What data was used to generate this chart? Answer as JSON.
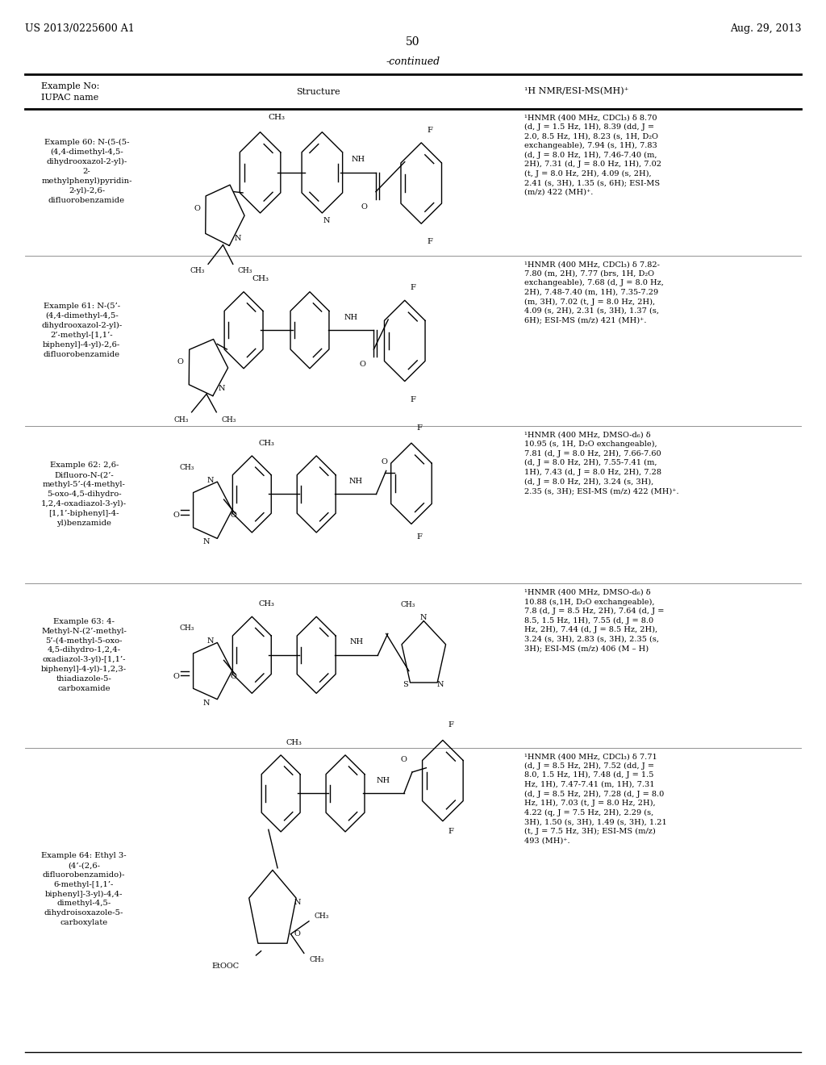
{
  "page_header_left": "US 2013/0225600 A1",
  "page_header_right": "Aug. 29, 2013",
  "page_number": "50",
  "continued_label": "-continued",
  "background_color": "#ffffff",
  "text_color": "#000000",
  "table_header_col1": "Example No:\nIUPAC name",
  "table_header_col2": "Structure",
  "table_header_col3": "¹H NMR/ESI-MS(MH)⁺",
  "examples": [
    {
      "id": "60",
      "name": "Example 60: N-(5-(5-\n(4,4-dimethyl-4,5-\ndihydrooxazol-2-yl)-\n2-\nmethylphenyl)pyridin-\n2-yl)-2,6-\ndifluorobenzamide",
      "nmr": "¹HNMR (400 MHz, CDCl₃) δ 8.70\n(d, J = 1.5 Hz, 1H), 8.39 (dd, J =\n2.0, 8.5 Hz, 1H), 8.23 (s, 1H, D₂O\nexchangeable), 7.94 (s, 1H), 7.83\n(d, J = 8.0 Hz, 1H), 7.46-7.40 (m,\n2H), 7.31 (d, J = 8.0 Hz, 1H), 7.02\n(t, J = 8.0 Hz, 2H), 4.09 (s, 2H),\n2.41 (s, 3H), 1.35 (s, 6H); ESI-MS\n(m/z) 422 (MH)⁺."
    },
    {
      "id": "61",
      "name": "Example 61: N-(5’-\n(4,4-dimethyl-4,5-\ndihydrooxazol-2-yl)-\n2’-methyl-[1,1’-\nbiphenyl]-4-yl)-2,6-\ndifluorobenzamide",
      "nmr": "¹HNMR (400 MHz, CDCl₃) δ 7.82-\n7.80 (m, 2H), 7.77 (brs, 1H, D₂O\nexchangeable), 7.68 (d, J = 8.0 Hz,\n2H), 7.48-7.40 (m, 1H), 7.35-7.29\n(m, 3H), 7.02 (t, J = 8.0 Hz, 2H),\n4.09 (s, 2H), 2.31 (s, 3H), 1.37 (s,\n6H); ESI-MS (m/z) 421 (MH)⁺."
    },
    {
      "id": "62",
      "name": "Example 62: 2,6-\nDifluoro-N-(2’-\nmethyl-5’-(4-methyl-\n5-oxo-4,5-dihydro-\n1,2,4-oxadiazol-3-yl)-\n[1,1’-biphenyl]-4-\nyl)benzamide",
      "nmr": "¹HNMR (400 MHz, DMSO-d₆) δ\n10.95 (s, 1H, D₂O exchangeable),\n7.81 (d, J = 8.0 Hz, 2H), 7.66-7.60\n(d, J = 8.0 Hz, 2H), 7.55-7.41 (m,\n1H), 7.43 (d, J = 8.0 Hz, 2H), 7.28\n(d, J = 8.0 Hz, 2H), 3.24 (s, 3H),\n2.35 (s, 3H); ESI-MS (m/z) 422 (MH)⁺."
    },
    {
      "id": "63",
      "name": "Example 63: 4-\nMethyl-N-(2’-methyl-\n5’-(4-methyl-5-oxo-\n4,5-dihydro-1,2,4-\noxadiazol-3-yl)-[1,1’-\nbiphenyl]-4-yl)-1,2,3-\nthiadiazole-5-\ncarboxamide",
      "nmr": "¹HNMR (400 MHz, DMSO-d₆) δ\n10.88 (s,1H, D₂O exchangeable),\n7.8 (d, J = 8.5 Hz, 2H), 7.64 (d, J =\n8.5, 1.5 Hz, 1H), 7.55 (d, J = 8.0\nHz, 2H), 7.44 (d, J = 8.5 Hz, 2H),\n3.24 (s, 3H), 2.83 (s, 3H), 2.35 (s,\n3H); ESI-MS (m/z) 406 (M – H)"
    },
    {
      "id": "64",
      "name": "Example 64: Ethyl 3-\n(4’-(2,6-\ndifluorobenzamido)-\n6-methyl-[1,1’-\nbiphenyl]-3-yl)-4,4-\ndimethyl-4,5-\ndihydroisoxazole-5-\ncarboxylate",
      "nmr": "¹HNMR (400 MHz, CDCl₃) δ 7.71\n(d, J = 8.5 Hz, 2H), 7.52 (dd, J =\n8.0, 1.5 Hz, 1H), 7.48 (d, J = 1.5\nHz, 1H), 7.47-7.41 (m, 1H), 7.31\n(d, J = 8.5 Hz, 2H), 7.28 (d, J = 8.0\nHz, 1H), 7.03 (t, J = 8.0 Hz, 2H),\n4.22 (q, J = 7.5 Hz, 2H), 2.29 (s,\n3H), 1.50 (s, 3H), 1.49 (s, 3H), 1.21\n(t, J = 7.5 Hz, 3H); ESI-MS (m/z)\n493 (MH)⁺."
    }
  ]
}
